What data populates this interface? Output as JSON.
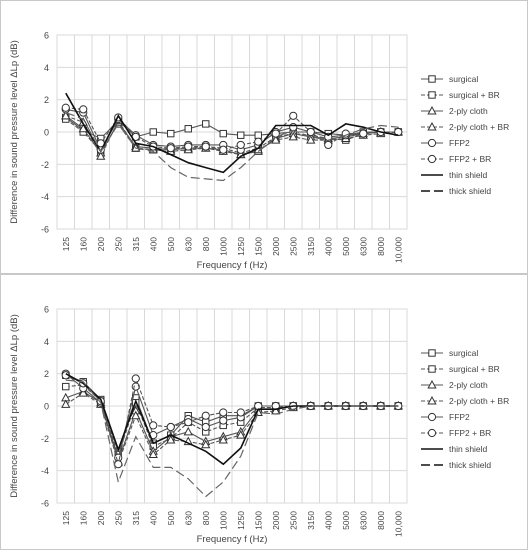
{
  "chart_data": [
    {
      "type": "line",
      "categories": [
        "125",
        "160",
        "200",
        "250",
        "315",
        "400",
        "500",
        "630",
        "800",
        "1000",
        "1250",
        "1500",
        "2000",
        "2500",
        "3150",
        "4000",
        "5000",
        "6300",
        "8000",
        "10,000"
      ],
      "xlabel": "Frequency f (Hz)",
      "ylabel": "Difference in sound pressure level ΔLp (dB)",
      "ylim": [
        -6,
        6
      ],
      "yticks": [
        "6",
        "4",
        "2",
        "0",
        "-2",
        "-4",
        "-6"
      ],
      "grid": true,
      "legend": "right",
      "series": [
        {
          "name": "surgical",
          "marker": "square",
          "filled": false,
          "dash": "solid",
          "values": [
            0.9,
            0.1,
            -0.4,
            0.7,
            -0.3,
            0.0,
            -0.1,
            0.2,
            0.5,
            -0.1,
            -0.2,
            -0.2,
            -0.1,
            0.0,
            0.0,
            -0.1,
            -0.2,
            0.0,
            0.0,
            0.0
          ]
        },
        {
          "name": "surgical + BR",
          "marker": "square",
          "filled": false,
          "dash": "dashed",
          "values": [
            0.8,
            0.0,
            -1.2,
            0.5,
            -1.0,
            -1.1,
            -1.0,
            -1.0,
            -0.9,
            -1.0,
            -1.3,
            -1.0,
            -0.3,
            -0.1,
            -0.2,
            -0.4,
            -0.5,
            -0.1,
            0.0,
            0.0
          ]
        },
        {
          "name": "2-ply cloth",
          "marker": "triangle",
          "filled": false,
          "dash": "solid",
          "values": [
            1.0,
            0.2,
            -1.3,
            0.6,
            -0.9,
            -1.0,
            -1.1,
            -1.0,
            -1.0,
            -1.1,
            -1.4,
            -1.2,
            -0.4,
            -0.1,
            -0.3,
            -0.4,
            -0.3,
            -0.1,
            0.0,
            0.0
          ]
        },
        {
          "name": "2-ply cloth + BR",
          "marker": "triangle",
          "filled": false,
          "dash": "dashed",
          "values": [
            1.0,
            0.6,
            -1.5,
            0.7,
            -1.0,
            -1.1,
            -1.2,
            -1.1,
            -1.0,
            -1.2,
            -1.4,
            -1.1,
            -0.5,
            -0.3,
            -0.5,
            -0.5,
            -0.4,
            -0.2,
            -0.1,
            0.0
          ]
        },
        {
          "name": "FFP2",
          "marker": "circle",
          "filled": false,
          "dash": "solid",
          "values": [
            1.4,
            1.2,
            -1.1,
            0.8,
            -0.2,
            -0.8,
            -0.9,
            -0.8,
            -0.8,
            -0.8,
            -1.1,
            -0.8,
            0.0,
            0.3,
            0.0,
            -0.3,
            -0.2,
            -0.1,
            0.0,
            0.0
          ]
        },
        {
          "name": "FFP2 + BR",
          "marker": "circle",
          "filled": false,
          "dash": "dashed",
          "values": [
            1.5,
            1.4,
            -0.7,
            0.9,
            -0.3,
            -0.9,
            -1.0,
            -0.9,
            -0.9,
            -1.1,
            -0.8,
            -0.6,
            -0.1,
            1.0,
            0.0,
            -0.8,
            -0.1,
            -0.1,
            0.0,
            0.0
          ]
        },
        {
          "name": "thin shield",
          "marker": "none",
          "filled": false,
          "dash": "solid",
          "values": [
            2.4,
            0.5,
            -1.2,
            1.0,
            -0.7,
            -0.9,
            -1.4,
            -1.9,
            -2.2,
            -2.5,
            -1.5,
            -1.0,
            0.4,
            0.4,
            0.4,
            -0.2,
            0.5,
            0.3,
            0.0,
            -0.2
          ]
        },
        {
          "name": "thick shield",
          "marker": "none",
          "filled": false,
          "dash": "longdash",
          "values": [
            1.2,
            0.8,
            -1.2,
            0.5,
            -1.0,
            -1.2,
            -2.2,
            -2.8,
            -2.9,
            -3.0,
            -2.2,
            -1.2,
            -0.3,
            0.1,
            -0.3,
            -0.5,
            -0.2,
            0.2,
            0.4,
            0.3
          ]
        }
      ]
    },
    {
      "type": "line",
      "categories": [
        "125",
        "160",
        "200",
        "250",
        "315",
        "400",
        "500",
        "630",
        "800",
        "1000",
        "1250",
        "1500",
        "2000",
        "2500",
        "3150",
        "4000",
        "5000",
        "6300",
        "8000",
        "10,000"
      ],
      "xlabel": "Frequency f (Hz)",
      "ylabel": "Difference in sound pressure level ΔLp (dB)",
      "ylim": [
        -6,
        6
      ],
      "yticks": [
        "6",
        "4",
        "2",
        "0",
        "-2",
        "-4",
        "-6"
      ],
      "grid": true,
      "legend": "right",
      "series": [
        {
          "name": "surgical",
          "marker": "square",
          "filled": false,
          "dash": "solid",
          "values": [
            1.9,
            1.5,
            0.4,
            -2.8,
            0.5,
            -2.3,
            -1.8,
            -0.6,
            -1.0,
            -0.6,
            -0.6,
            0.0,
            0.0,
            0.0,
            0.0,
            0.0,
            0.0,
            0.0,
            0.0,
            0.0
          ]
        },
        {
          "name": "surgical + BR",
          "marker": "square",
          "filled": false,
          "dash": "dashed",
          "values": [
            1.2,
            1.3,
            0.3,
            -3.0,
            0.2,
            -2.5,
            -2.0,
            -1.0,
            -1.6,
            -1.2,
            -1.0,
            -0.1,
            -0.1,
            0.0,
            0.0,
            0.0,
            0.0,
            0.0,
            0.0,
            0.0
          ]
        },
        {
          "name": "2-ply cloth",
          "marker": "triangle",
          "filled": false,
          "dash": "solid",
          "values": [
            0.5,
            0.9,
            0.2,
            -3.4,
            -0.3,
            -2.8,
            -1.9,
            -1.6,
            -2.2,
            -1.9,
            -1.6,
            -0.2,
            -0.2,
            0.0,
            0.0,
            0.0,
            0.0,
            0.0,
            0.0,
            0.0
          ]
        },
        {
          "name": "2-ply cloth + BR",
          "marker": "triangle",
          "filled": false,
          "dash": "dashed",
          "values": [
            0.1,
            0.8,
            0.1,
            -3.5,
            -0.6,
            -3.0,
            -2.1,
            -2.2,
            -2.4,
            -2.1,
            -1.8,
            -0.4,
            -0.3,
            -0.1,
            0.0,
            0.0,
            0.0,
            0.0,
            0.0,
            0.0
          ]
        },
        {
          "name": "FFP2",
          "marker": "circle",
          "filled": false,
          "dash": "solid",
          "values": [
            2.0,
            1.1,
            0.2,
            -3.2,
            1.2,
            -1.8,
            -1.3,
            -0.8,
            -1.3,
            -0.9,
            -0.7,
            0.0,
            0.0,
            0.0,
            0.0,
            0.0,
            0.0,
            0.0,
            0.0,
            0.0
          ]
        },
        {
          "name": "FFP2 + BR",
          "marker": "circle",
          "filled": false,
          "dash": "dashed",
          "values": [
            1.9,
            1.4,
            0.3,
            -3.6,
            1.7,
            -1.2,
            -1.3,
            -1.0,
            -0.6,
            -0.4,
            -0.4,
            0.0,
            0.0,
            0.0,
            0.0,
            0.0,
            0.0,
            0.0,
            0.0,
            0.0
          ]
        },
        {
          "name": "thin shield",
          "marker": "none",
          "filled": false,
          "dash": "solid",
          "values": [
            2.0,
            1.4,
            0.4,
            -2.7,
            0.3,
            -2.3,
            -1.8,
            -2.3,
            -2.8,
            -3.6,
            -2.6,
            -0.2,
            -0.2,
            0.0,
            0.0,
            0.0,
            0.0,
            0.0,
            0.0,
            0.0
          ]
        },
        {
          "name": "thick shield",
          "marker": "none",
          "filled": false,
          "dash": "longdash",
          "values": [
            1.6,
            1.5,
            0.2,
            -4.7,
            -1.9,
            -3.8,
            -3.8,
            -4.5,
            -5.6,
            -4.7,
            -3.1,
            -0.4,
            -0.5,
            -0.2,
            0.0,
            0.0,
            0.0,
            0.0,
            0.0,
            0.0
          ]
        }
      ]
    }
  ]
}
